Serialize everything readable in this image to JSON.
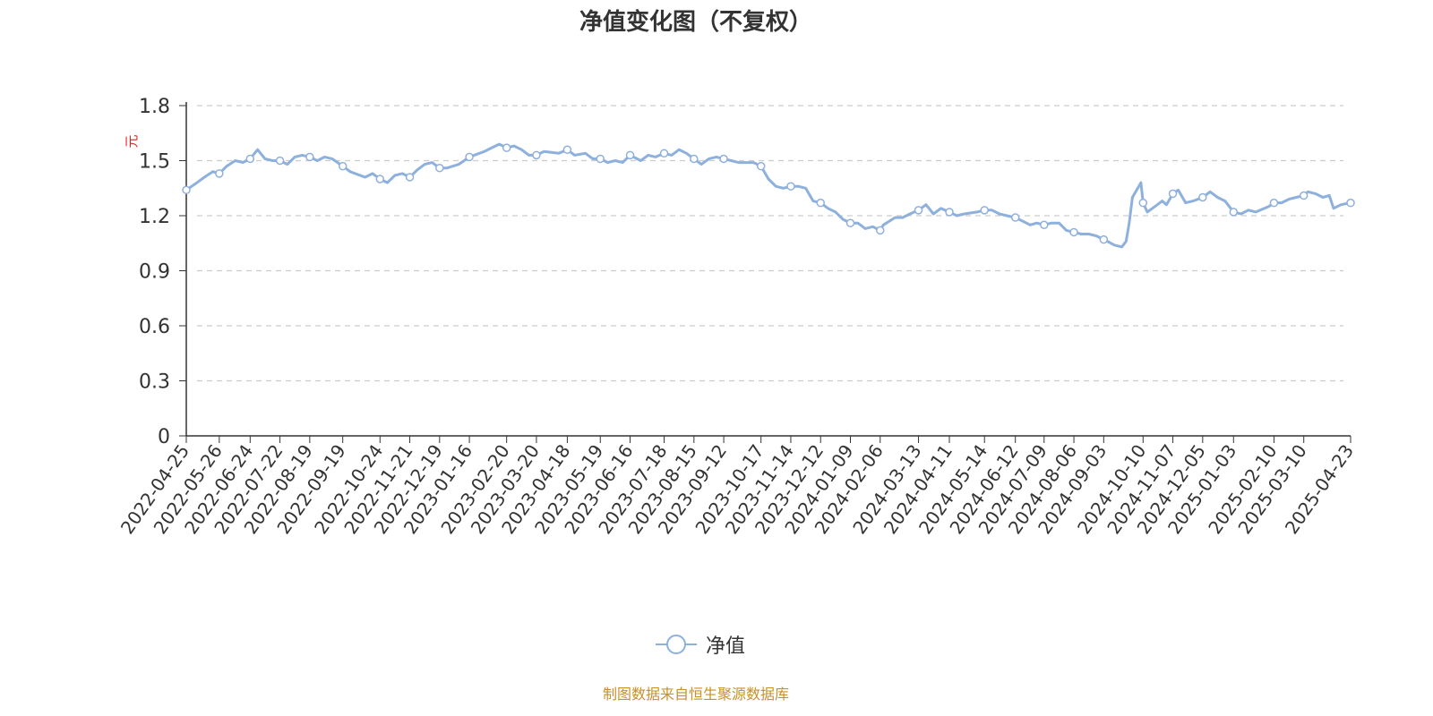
{
  "chart_data": {
    "type": "line",
    "title": "净值变化图（不复权）",
    "ylabel": "元",
    "ylim": [
      0,
      1.8
    ],
    "yticks": [
      "0",
      "0.3",
      "0.6",
      "0.9",
      "1.2",
      "1.5",
      "1.8"
    ],
    "grid": true,
    "legend_position": "bottom-center",
    "x_tick_labels": [
      "2022-04-25",
      "2022-05-26",
      "2022-06-24",
      "2022-07-22",
      "2022-08-19",
      "2022-09-19",
      "2022-10-24",
      "2022-11-21",
      "2022-12-19",
      "2023-01-16",
      "2023-02-20",
      "2023-03-20",
      "2023-04-18",
      "2023-05-19",
      "2023-06-16",
      "2023-07-18",
      "2023-08-15",
      "2023-09-12",
      "2023-10-17",
      "2023-11-14",
      "2023-12-12",
      "2024-01-09",
      "2024-02-06",
      "2024-03-13",
      "2024-04-11",
      "2024-05-14",
      "2024-06-12",
      "2024-07-09",
      "2024-08-06",
      "2024-09-03",
      "2024-10-10",
      "2024-11-07",
      "2024-12-05",
      "2025-01-03",
      "2025-02-10",
      "2025-03-10",
      "2025-04-23"
    ],
    "series": [
      {
        "name": "净值",
        "color": "#8eb0dc",
        "points": [
          [
            "2022-04-25",
            1.34
          ],
          [
            "2022-05-05",
            1.38
          ],
          [
            "2022-05-12",
            1.41
          ],
          [
            "2022-05-20",
            1.44
          ],
          [
            "2022-05-26",
            1.43
          ],
          [
            "2022-06-02",
            1.47
          ],
          [
            "2022-06-10",
            1.5
          ],
          [
            "2022-06-17",
            1.49
          ],
          [
            "2022-06-24",
            1.51
          ],
          [
            "2022-07-01",
            1.56
          ],
          [
            "2022-07-08",
            1.51
          ],
          [
            "2022-07-15",
            1.5
          ],
          [
            "2022-07-22",
            1.5
          ],
          [
            "2022-07-29",
            1.48
          ],
          [
            "2022-08-05",
            1.52
          ],
          [
            "2022-08-12",
            1.53
          ],
          [
            "2022-08-19",
            1.52
          ],
          [
            "2022-08-26",
            1.5
          ],
          [
            "2022-09-02",
            1.52
          ],
          [
            "2022-09-09",
            1.51
          ],
          [
            "2022-09-19",
            1.47
          ],
          [
            "2022-09-26",
            1.44
          ],
          [
            "2022-10-10",
            1.41
          ],
          [
            "2022-10-17",
            1.43
          ],
          [
            "2022-10-24",
            1.4
          ],
          [
            "2022-10-31",
            1.38
          ],
          [
            "2022-11-07",
            1.42
          ],
          [
            "2022-11-14",
            1.43
          ],
          [
            "2022-11-21",
            1.41
          ],
          [
            "2022-11-28",
            1.45
          ],
          [
            "2022-12-05",
            1.48
          ],
          [
            "2022-12-12",
            1.49
          ],
          [
            "2022-12-19",
            1.46
          ],
          [
            "2022-12-26",
            1.46
          ],
          [
            "2023-01-06",
            1.48
          ],
          [
            "2023-01-16",
            1.52
          ],
          [
            "2023-01-30",
            1.55
          ],
          [
            "2023-02-06",
            1.57
          ],
          [
            "2023-02-13",
            1.59
          ],
          [
            "2023-02-20",
            1.57
          ],
          [
            "2023-02-27",
            1.58
          ],
          [
            "2023-03-06",
            1.56
          ],
          [
            "2023-03-13",
            1.53
          ],
          [
            "2023-03-20",
            1.53
          ],
          [
            "2023-03-27",
            1.55
          ],
          [
            "2023-04-10",
            1.54
          ],
          [
            "2023-04-18",
            1.56
          ],
          [
            "2023-04-25",
            1.53
          ],
          [
            "2023-05-05",
            1.54
          ],
          [
            "2023-05-12",
            1.51
          ],
          [
            "2023-05-19",
            1.51
          ],
          [
            "2023-05-26",
            1.49
          ],
          [
            "2023-06-02",
            1.5
          ],
          [
            "2023-06-09",
            1.49
          ],
          [
            "2023-06-16",
            1.53
          ],
          [
            "2023-06-26",
            1.5
          ],
          [
            "2023-07-03",
            1.53
          ],
          [
            "2023-07-10",
            1.52
          ],
          [
            "2023-07-18",
            1.54
          ],
          [
            "2023-07-25",
            1.53
          ],
          [
            "2023-08-01",
            1.56
          ],
          [
            "2023-08-08",
            1.54
          ],
          [
            "2023-08-15",
            1.51
          ],
          [
            "2023-08-22",
            1.48
          ],
          [
            "2023-08-29",
            1.51
          ],
          [
            "2023-09-05",
            1.52
          ],
          [
            "2023-09-12",
            1.51
          ],
          [
            "2023-09-19",
            1.5
          ],
          [
            "2023-09-26",
            1.49
          ],
          [
            "2023-10-10",
            1.49
          ],
          [
            "2023-10-17",
            1.47
          ],
          [
            "2023-10-24",
            1.4
          ],
          [
            "2023-10-31",
            1.36
          ],
          [
            "2023-11-07",
            1.35
          ],
          [
            "2023-11-14",
            1.36
          ],
          [
            "2023-11-21",
            1.36
          ],
          [
            "2023-11-28",
            1.35
          ],
          [
            "2023-12-05",
            1.28
          ],
          [
            "2023-12-12",
            1.27
          ],
          [
            "2023-12-19",
            1.24
          ],
          [
            "2023-12-26",
            1.22
          ],
          [
            "2024-01-02",
            1.18
          ],
          [
            "2024-01-09",
            1.16
          ],
          [
            "2024-01-16",
            1.16
          ],
          [
            "2024-01-23",
            1.13
          ],
          [
            "2024-01-30",
            1.14
          ],
          [
            "2024-02-06",
            1.12
          ],
          [
            "2024-02-09",
            1.15
          ],
          [
            "2024-02-20",
            1.19
          ],
          [
            "2024-02-27",
            1.19
          ],
          [
            "2024-03-05",
            1.21
          ],
          [
            "2024-03-13",
            1.23
          ],
          [
            "2024-03-20",
            1.26
          ],
          [
            "2024-03-27",
            1.21
          ],
          [
            "2024-04-03",
            1.24
          ],
          [
            "2024-04-11",
            1.22
          ],
          [
            "2024-04-18",
            1.2
          ],
          [
            "2024-04-25",
            1.21
          ],
          [
            "2024-05-07",
            1.22
          ],
          [
            "2024-05-14",
            1.23
          ],
          [
            "2024-05-21",
            1.23
          ],
          [
            "2024-05-28",
            1.21
          ],
          [
            "2024-06-04",
            1.2
          ],
          [
            "2024-06-12",
            1.19
          ],
          [
            "2024-06-19",
            1.17
          ],
          [
            "2024-06-26",
            1.15
          ],
          [
            "2024-07-02",
            1.16
          ],
          [
            "2024-07-09",
            1.15
          ],
          [
            "2024-07-16",
            1.16
          ],
          [
            "2024-07-23",
            1.16
          ],
          [
            "2024-07-30",
            1.12
          ],
          [
            "2024-08-06",
            1.11
          ],
          [
            "2024-08-13",
            1.1
          ],
          [
            "2024-08-20",
            1.1
          ],
          [
            "2024-08-27",
            1.09
          ],
          [
            "2024-09-03",
            1.07
          ],
          [
            "2024-09-10",
            1.05
          ],
          [
            "2024-09-13",
            1.04
          ],
          [
            "2024-09-20",
            1.03
          ],
          [
            "2024-09-24",
            1.06
          ],
          [
            "2024-09-27",
            1.16
          ],
          [
            "2024-09-30",
            1.3
          ],
          [
            "2024-10-08",
            1.38
          ],
          [
            "2024-10-10",
            1.27
          ],
          [
            "2024-10-14",
            1.22
          ],
          [
            "2024-10-21",
            1.25
          ],
          [
            "2024-10-28",
            1.28
          ],
          [
            "2024-11-01",
            1.26
          ],
          [
            "2024-11-07",
            1.32
          ],
          [
            "2024-11-12",
            1.34
          ],
          [
            "2024-11-19",
            1.27
          ],
          [
            "2024-11-26",
            1.28
          ],
          [
            "2024-12-05",
            1.3
          ],
          [
            "2024-12-12",
            1.33
          ],
          [
            "2024-12-19",
            1.3
          ],
          [
            "2024-12-26",
            1.28
          ],
          [
            "2025-01-03",
            1.22
          ],
          [
            "2025-01-10",
            1.21
          ],
          [
            "2025-01-17",
            1.23
          ],
          [
            "2025-01-24",
            1.22
          ],
          [
            "2025-02-05",
            1.25
          ],
          [
            "2025-02-10",
            1.27
          ],
          [
            "2025-02-17",
            1.27
          ],
          [
            "2025-02-24",
            1.29
          ],
          [
            "2025-03-03",
            1.3
          ],
          [
            "2025-03-10",
            1.31
          ],
          [
            "2025-03-14",
            1.33
          ],
          [
            "2025-03-21",
            1.32
          ],
          [
            "2025-03-28",
            1.3
          ],
          [
            "2025-04-03",
            1.31
          ],
          [
            "2025-04-07",
            1.24
          ],
          [
            "2025-04-14",
            1.26
          ],
          [
            "2025-04-23",
            1.27
          ]
        ]
      }
    ]
  },
  "legend": {
    "label": "净值"
  },
  "source_note": {
    "text": "制图数据来自恒生聚源数据库",
    "color": "#c8902a"
  },
  "colors": {
    "axis": "#333333",
    "grid": "#cccccc",
    "ylabel": "#e02020",
    "text": "#333333"
  }
}
